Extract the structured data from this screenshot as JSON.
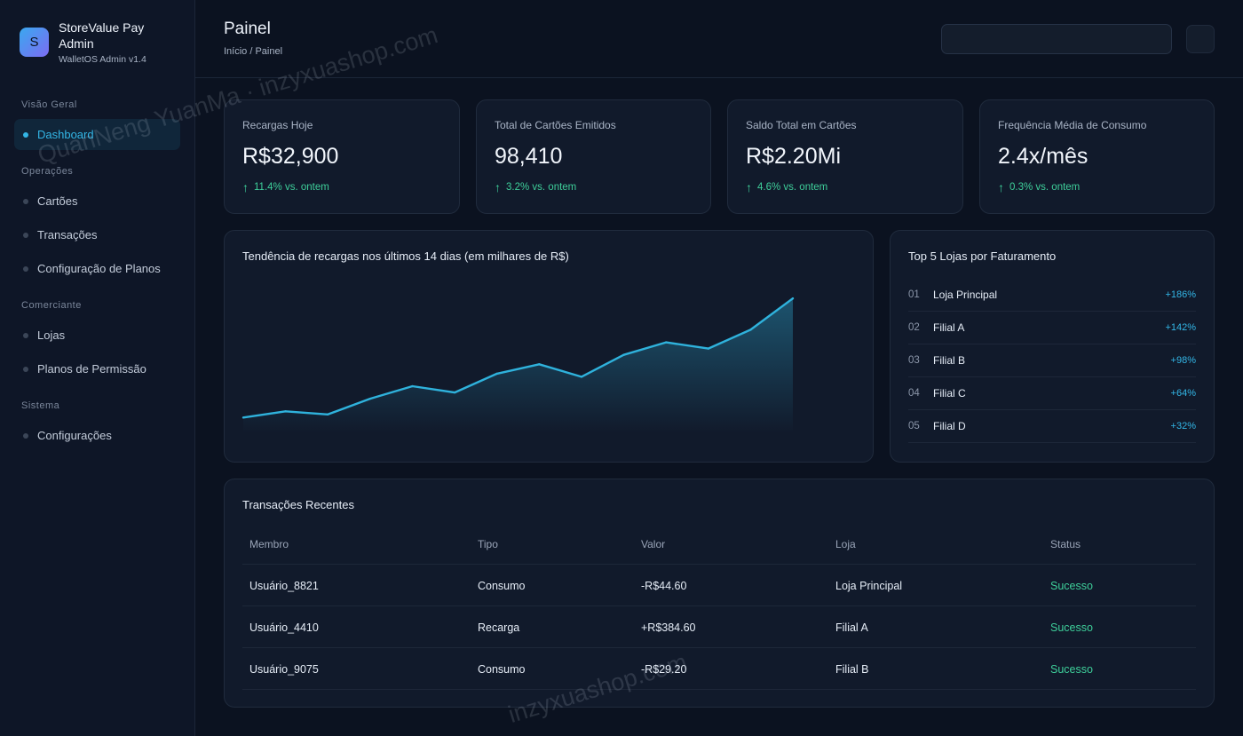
{
  "brand": {
    "logo_letter": "S",
    "name": "StoreValue Pay Admin",
    "version": "WalletOS Admin v1.4"
  },
  "sidebar": {
    "sections": [
      {
        "title": "Visão Geral",
        "items": [
          {
            "label": "Dashboard",
            "active": true
          }
        ]
      },
      {
        "title": "Operações",
        "items": [
          {
            "label": "Cartões"
          },
          {
            "label": "Transações"
          },
          {
            "label": "Configuração de Planos"
          }
        ]
      },
      {
        "title": "Comerciante",
        "items": [
          {
            "label": "Lojas"
          },
          {
            "label": "Planos de Permissão"
          }
        ]
      },
      {
        "title": "Sistema",
        "items": [
          {
            "label": "Configurações"
          }
        ]
      }
    ]
  },
  "header": {
    "title": "Painel",
    "breadcrumb": "Início / Painel",
    "search_value": ""
  },
  "stats": [
    {
      "label": "Recargas Hoje",
      "value": "R$32,900",
      "change": "11.4% vs. ontem"
    },
    {
      "label": "Total de Cartões Emitidos",
      "value": "98,410",
      "change": "3.2% vs. ontem"
    },
    {
      "label": "Saldo Total em Cartões",
      "value": "R$2.20Mi",
      "change": "4.6% vs. ontem"
    },
    {
      "label": "Frequência Média de Consumo",
      "value": "2.4x/mês",
      "change": "0.3% vs. ontem"
    }
  ],
  "chart_data": {
    "type": "area",
    "title": "Tendência de recargas nos últimos 14 dias (em milhares de R$)",
    "x": [
      1,
      2,
      3,
      4,
      5,
      6,
      7,
      8,
      9,
      10,
      11,
      12,
      13,
      14
    ],
    "values": [
      20,
      22,
      21,
      26,
      30,
      28,
      34,
      37,
      33,
      40,
      44,
      42,
      48,
      58
    ],
    "ylim": [
      15,
      62
    ],
    "grid": false,
    "legend": "none",
    "color": "#2fb2dc"
  },
  "top_stores": {
    "title": "Top 5 Lojas por Faturamento",
    "items": [
      {
        "rank": "01",
        "name": "Loja Principal",
        "pct": "+186%"
      },
      {
        "rank": "02",
        "name": "Filial A",
        "pct": "+142%"
      },
      {
        "rank": "03",
        "name": "Filial B",
        "pct": "+98%"
      },
      {
        "rank": "04",
        "name": "Filial C",
        "pct": "+64%"
      },
      {
        "rank": "05",
        "name": "Filial D",
        "pct": "+32%"
      }
    ]
  },
  "transactions": {
    "title": "Transações Recentes",
    "columns": [
      "Membro",
      "Tipo",
      "Valor",
      "Loja",
      "Status"
    ],
    "rows": [
      [
        "Usuário_8821",
        "Consumo",
        "-R$44.60",
        "Loja Principal",
        "Sucesso"
      ],
      [
        "Usuário_4410",
        "Recarga",
        "+R$384.60",
        "Filial A",
        "Sucesso"
      ],
      [
        "Usuário_9075",
        "Consumo",
        "-R$29.20",
        "Filial B",
        "Sucesso"
      ]
    ]
  },
  "watermark": {
    "text_1": "QuanNeng YuanMa · inzyxuashop.com",
    "text_2": "inzyxuashop.com"
  },
  "colors": {
    "accent": "#33b6e6",
    "positive": "#3ecf9a",
    "background": "#0b1220",
    "card": "#111a2b"
  }
}
